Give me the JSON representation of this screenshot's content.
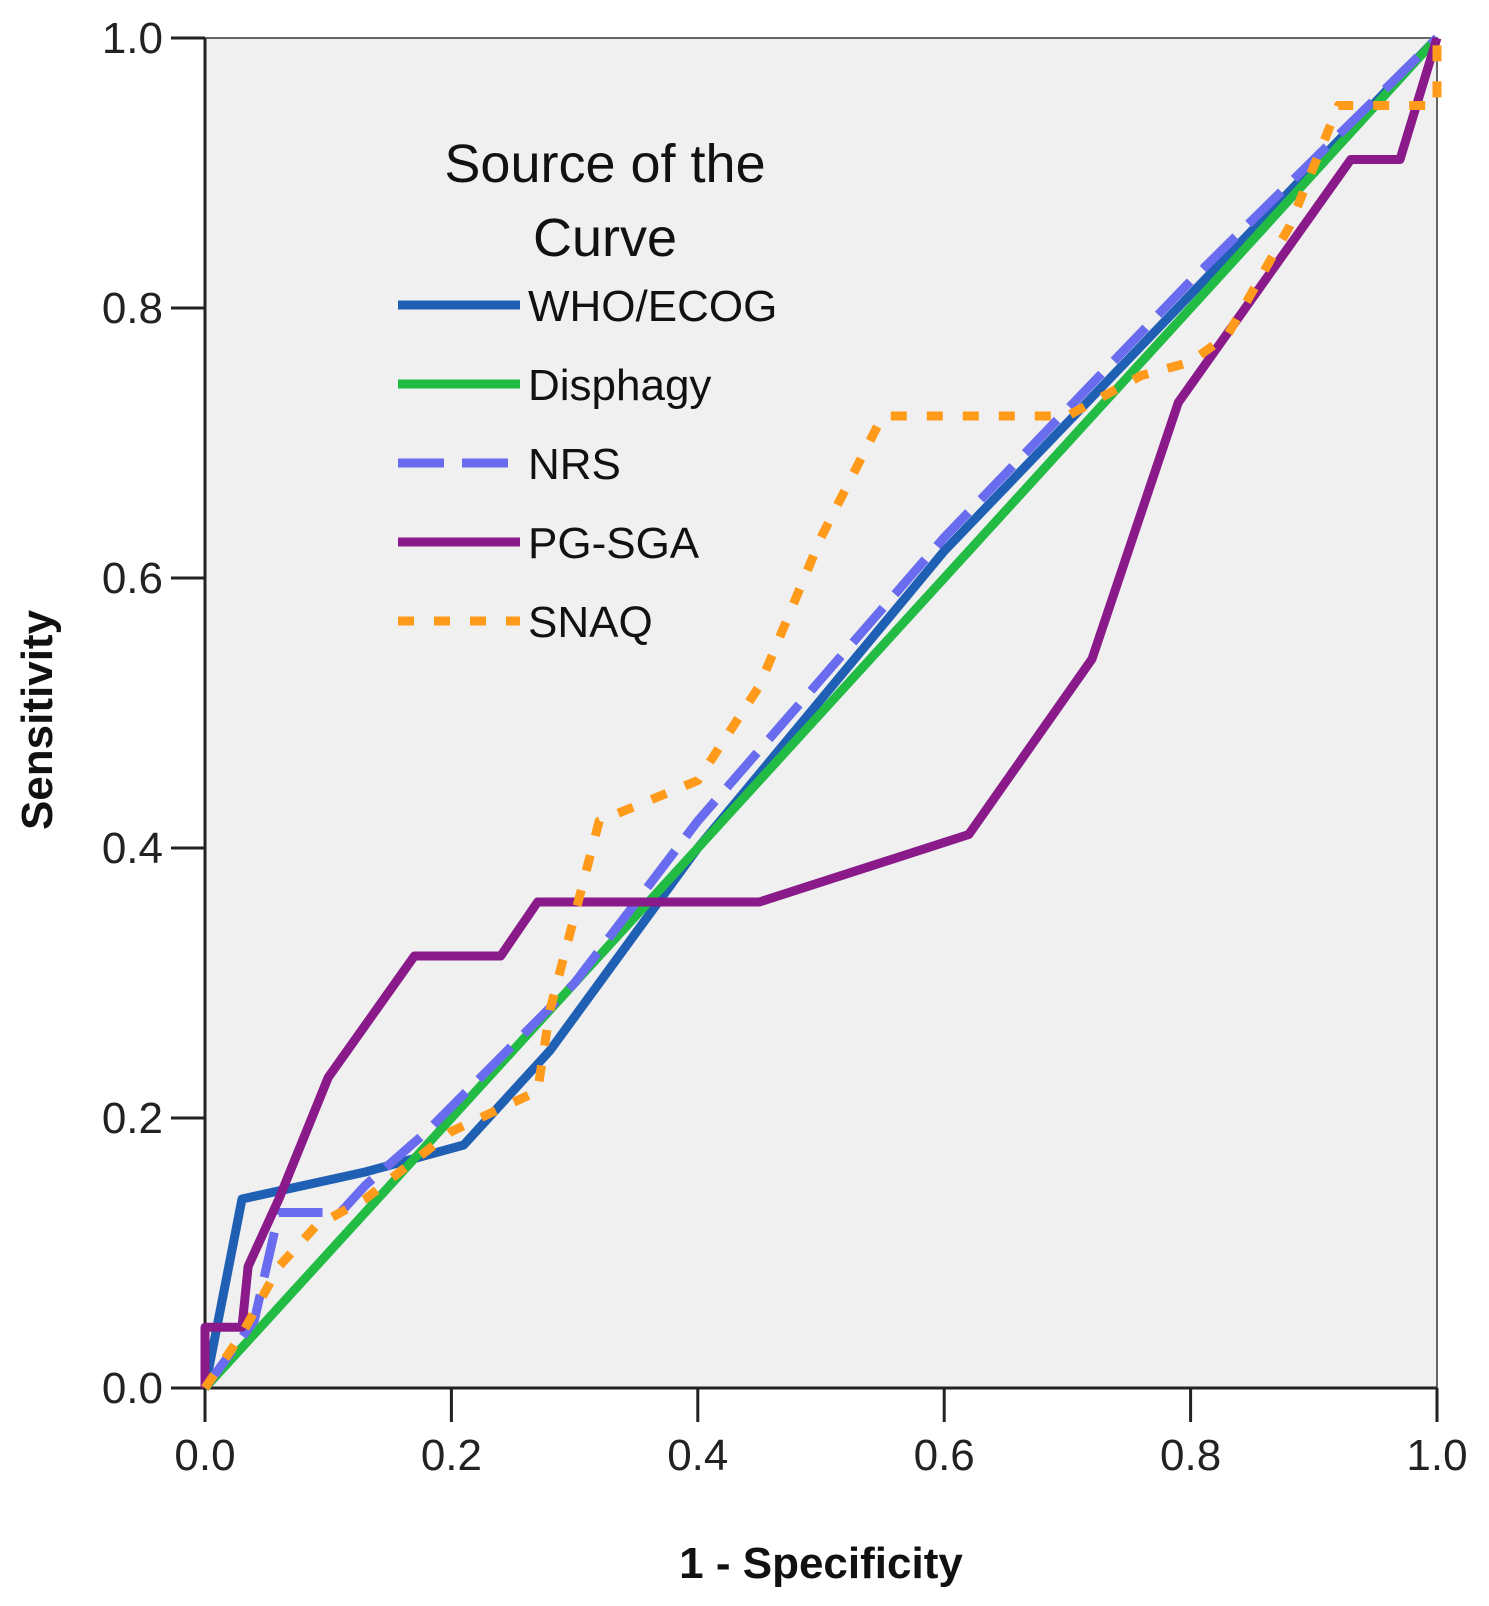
{
  "chart_data": {
    "type": "line",
    "title": "",
    "xlabel": "1 - Specificity",
    "ylabel": "Sensitivity",
    "xlim": [
      0,
      1
    ],
    "ylim": [
      0,
      1
    ],
    "xticks": [
      "0.0",
      "0.2",
      "0.4",
      "0.6",
      "0.8",
      "1.0"
    ],
    "yticks": [
      "0.0",
      "0.2",
      "0.4",
      "0.6",
      "0.8",
      "1.0"
    ],
    "grid": false,
    "legend": {
      "title_lines": [
        "Source of the",
        "Curve"
      ],
      "position": "top-left"
    },
    "series": [
      {
        "name": "WHO/ECOG",
        "color": "#1f5fb4",
        "style": "solid",
        "x": [
          0,
          0.03,
          0.13,
          0.21,
          0.28,
          0.4,
          0.6,
          0.8,
          1.0
        ],
        "y": [
          0,
          0.14,
          0.16,
          0.18,
          0.25,
          0.4,
          0.62,
          0.81,
          1.0
        ]
      },
      {
        "name": "Disphagy",
        "color": "#22bb44",
        "style": "solid",
        "x": [
          0,
          0.25,
          0.5,
          0.75,
          1.0
        ],
        "y": [
          0,
          0.25,
          0.5,
          0.75,
          1.0
        ]
      },
      {
        "name": "NRS",
        "color": "#6a6cf0",
        "style": "dashed",
        "x": [
          0,
          0.04,
          0.06,
          0.11,
          0.13,
          0.18,
          0.3,
          0.4,
          0.6,
          0.8,
          1.0
        ],
        "y": [
          0,
          0.05,
          0.13,
          0.13,
          0.15,
          0.19,
          0.3,
          0.42,
          0.63,
          0.82,
          1.0
        ]
      },
      {
        "name": "PG-SGA",
        "color": "#8a1a8a",
        "style": "solid",
        "x": [
          0,
          0,
          0.03,
          0.035,
          0.06,
          0.1,
          0.17,
          0.24,
          0.27,
          0.45,
          0.62,
          0.72,
          0.79,
          0.86,
          0.93,
          0.97,
          1.0
        ],
        "y": [
          0,
          0.045,
          0.045,
          0.09,
          0.14,
          0.23,
          0.32,
          0.32,
          0.36,
          0.36,
          0.41,
          0.54,
          0.73,
          0.82,
          0.91,
          0.91,
          1.0
        ]
      },
      {
        "name": "SNAQ",
        "color": "#ff9a1a",
        "style": "dotted",
        "x": [
          0,
          0.03,
          0.06,
          0.09,
          0.13,
          0.2,
          0.27,
          0.28,
          0.3,
          0.32,
          0.4,
          0.45,
          0.5,
          0.55,
          0.6,
          0.7,
          0.76,
          0.8,
          0.83,
          0.88,
          0.92,
          0.98,
          1.0,
          1.0,
          1.0
        ],
        "y": [
          0,
          0.04,
          0.09,
          0.12,
          0.14,
          0.19,
          0.22,
          0.28,
          0.35,
          0.42,
          0.45,
          0.52,
          0.63,
          0.72,
          0.72,
          0.72,
          0.75,
          0.76,
          0.78,
          0.86,
          0.95,
          0.95,
          0.95,
          0.97,
          1.0
        ]
      }
    ]
  }
}
